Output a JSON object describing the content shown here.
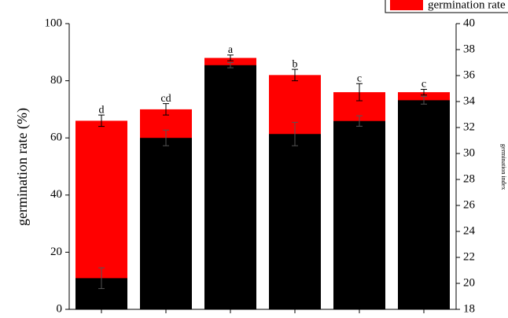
{
  "chart_data": {
    "type": "bar",
    "y_label": "germination rate (%)",
    "y2_label": "germination index",
    "categories": [
      null,
      null,
      null,
      null,
      null,
      null
    ],
    "series": [
      {
        "name": "germination rate",
        "color": "#ff0000",
        "values": [
          66,
          70,
          88,
          82,
          76,
          76
        ],
        "errors": [
          2,
          2,
          1,
          2,
          3,
          1
        ]
      },
      {
        "color": "#000000",
        "axis": "y2",
        "values": [
          20.4,
          31.2,
          36.8,
          31.5,
          32.5,
          34.1
        ],
        "errors": [
          0.8,
          0.6,
          0.2,
          0.9,
          0.4,
          0.3
        ]
      }
    ],
    "annotations": [
      "d",
      "cd",
      "a",
      "b",
      "c",
      "c"
    ],
    "ylim": [
      0,
      100
    ],
    "yticks": [
      0,
      20,
      40,
      60,
      80,
      100
    ],
    "y2lim": [
      18,
      40
    ],
    "y2ticks": [
      18,
      20,
      22,
      24,
      26,
      28,
      30,
      32,
      34,
      36,
      38,
      40
    ],
    "legend": "top-right"
  }
}
